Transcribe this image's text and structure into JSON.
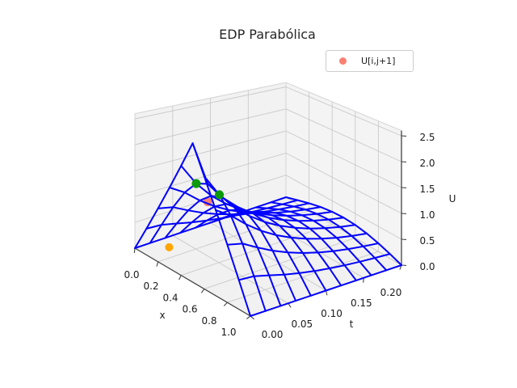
{
  "title": "EDP Parabólica",
  "legend": {
    "label": "U[i,j+1]",
    "marker_color": "#fa8072",
    "position": "upper right"
  },
  "axes": {
    "x": {
      "label": "x",
      "range": [
        0.0,
        1.0
      ],
      "tick_values": [
        0.0,
        0.2,
        0.4,
        0.6,
        0.8,
        1.0
      ],
      "tick_labels": [
        "0.0",
        "0.2",
        "0.4",
        "0.6",
        "0.8",
        "1.0"
      ]
    },
    "t": {
      "label": "t",
      "range": [
        0.0,
        0.2
      ],
      "tick_values": [
        0.0,
        0.05,
        0.1,
        0.15,
        0.2
      ],
      "tick_labels": [
        "0.00",
        "0.05",
        "0.10",
        "0.15",
        "0.20"
      ]
    },
    "u": {
      "label": "U",
      "range": [
        0.0,
        2.6
      ],
      "tick_values": [
        0.0,
        0.5,
        1.0,
        1.5,
        2.0,
        2.5
      ],
      "tick_labels": [
        "0.0",
        "0.5",
        "1.0",
        "1.5",
        "2.0",
        "2.5"
      ]
    }
  },
  "colors": {
    "background": "#ffffff",
    "wireframe": "#0000ff",
    "pane_left": "#f2f2f2",
    "pane_right": "#f4f4f4",
    "pane_floor": "#f1f1f1",
    "grid": "#c9c9c9",
    "pane_edge": "#d4d4d4",
    "spine": "#444444",
    "tick_text": "#1a1a1a",
    "scatter_green": "#0a9a0a",
    "scatter_salmon": "#fa8072",
    "scatter_orange": "#ffa500"
  },
  "chart_data": {
    "type": "wireframe-3d-surface",
    "title": "EDP Parabólica",
    "xlabel": "x",
    "ylabel": "t",
    "zlabel": "U",
    "grid": true,
    "x": [
      0.0,
      0.1,
      0.2,
      0.3,
      0.4,
      0.5,
      0.6,
      0.7,
      0.8,
      0.9,
      1.0
    ],
    "t": [
      0.0,
      0.02,
      0.04,
      0.06,
      0.08,
      0.1,
      0.12,
      0.14,
      0.16,
      0.18,
      0.2
    ],
    "u_values": [
      [
        0,
        0.5,
        1.0,
        1.5,
        2.0,
        2.5,
        2.0,
        1.5,
        1.0,
        0.5,
        0
      ],
      [
        0,
        0.484,
        0.942,
        1.333,
        1.604,
        1.702,
        1.604,
        1.333,
        0.942,
        0.484,
        0
      ],
      [
        0,
        0.417,
        0.796,
        1.103,
        1.302,
        1.372,
        1.302,
        1.103,
        0.796,
        0.417,
        0
      ],
      [
        0,
        0.345,
        0.658,
        0.906,
        1.067,
        1.122,
        1.067,
        0.906,
        0.658,
        0.345,
        0
      ],
      [
        0,
        0.284,
        0.541,
        0.744,
        0.875,
        0.92,
        0.875,
        0.744,
        0.541,
        0.284,
        0
      ],
      [
        0,
        0.233,
        0.444,
        0.611,
        0.718,
        0.755,
        0.718,
        0.611,
        0.444,
        0.233,
        0
      ],
      [
        0,
        0.192,
        0.364,
        0.502,
        0.59,
        0.62,
        0.59,
        0.502,
        0.364,
        0.192,
        0
      ],
      [
        0,
        0.157,
        0.299,
        0.412,
        0.484,
        0.509,
        0.484,
        0.412,
        0.299,
        0.157,
        0
      ],
      [
        0,
        0.129,
        0.246,
        0.338,
        0.397,
        0.418,
        0.397,
        0.338,
        0.246,
        0.129,
        0
      ],
      [
        0,
        0.106,
        0.202,
        0.277,
        0.326,
        0.343,
        0.326,
        0.277,
        0.202,
        0.106,
        0
      ],
      [
        0,
        0.087,
        0.165,
        0.228,
        0.268,
        0.282,
        0.268,
        0.228,
        0.165,
        0.087,
        0
      ]
    ],
    "scatter_points": [
      {
        "name": "green-dot-left",
        "x": 0.4,
        "t": 0.02,
        "u": 1.604,
        "color": "#0a9a0a",
        "r": 5.5,
        "layer": "front"
      },
      {
        "name": "green-dot-right",
        "x": 0.6,
        "t": 0.02,
        "u": 1.604,
        "color": "#0a9a0a",
        "r": 5.5,
        "layer": "front"
      },
      {
        "name": "salmon-dot",
        "x": 0.5,
        "t": 0.02,
        "u": 1.372,
        "color": "#fa8072",
        "r": 5.5,
        "layer": "behind"
      },
      {
        "name": "orange-dot",
        "x": 0.1,
        "t": 0.03,
        "u": 0.0,
        "color": "#ffa500",
        "r": 5.0,
        "layer": "front"
      }
    ]
  }
}
